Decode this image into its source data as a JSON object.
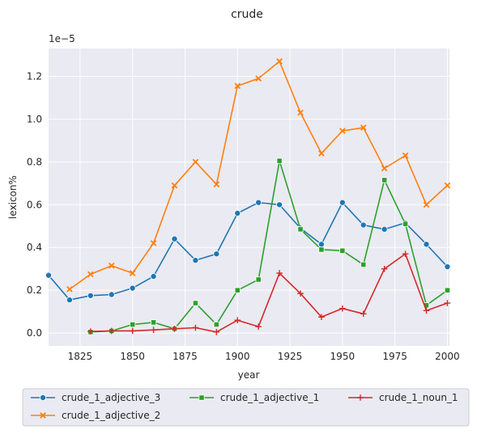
{
  "chart_data": {
    "type": "line",
    "title": "crude",
    "xlabel": "year",
    "ylabel": "lexicon%",
    "y_scale_label": "1e−5",
    "xlim": [
      1810,
      2001
    ],
    "ylim": [
      -0.06,
      1.33
    ],
    "x_ticks": [
      1825,
      1850,
      1875,
      1900,
      1925,
      1950,
      1975,
      2000
    ],
    "x_tick_labels": [
      "1825",
      "1850",
      "1875",
      "1900",
      "1925",
      "1950",
      "1975",
      "2000"
    ],
    "y_ticks": [
      0.0,
      0.2,
      0.4,
      0.6,
      0.8,
      1.0,
      1.2
    ],
    "y_tick_labels": [
      "0.0",
      "0.2",
      "0.4",
      "0.6",
      "0.8",
      "1.0",
      "1.2"
    ],
    "grid": true,
    "legend_position": "bottom",
    "series": [
      {
        "name": "crude_1_adjective_3",
        "color": "#1f77b4",
        "marker": "circle",
        "x": [
          1810,
          1820,
          1830,
          1840,
          1850,
          1860,
          1870,
          1880,
          1890,
          1900,
          1910,
          1920,
          1930,
          1940,
          1950,
          1960,
          1970,
          1980,
          1990,
          2000
        ],
        "y": [
          0.27,
          0.155,
          0.175,
          0.18,
          0.21,
          0.265,
          0.44,
          0.34,
          0.37,
          0.56,
          0.61,
          0.6,
          0.49,
          0.415,
          0.61,
          0.505,
          0.485,
          0.515,
          0.415,
          0.31
        ]
      },
      {
        "name": "crude_1_adjective_2",
        "color": "#ff7f0e",
        "marker": "x",
        "x": [
          1820,
          1830,
          1840,
          1850,
          1860,
          1870,
          1880,
          1890,
          1900,
          1910,
          1920,
          1930,
          1940,
          1950,
          1960,
          1970,
          1980,
          1990,
          2000
        ],
        "y": [
          0.205,
          0.275,
          0.315,
          0.28,
          0.42,
          0.69,
          0.8,
          0.695,
          1.155,
          1.19,
          1.27,
          1.03,
          0.84,
          0.945,
          0.96,
          0.77,
          0.83,
          0.6,
          0.69
        ]
      },
      {
        "name": "crude_1_adjective_1",
        "color": "#2ca02c",
        "marker": "square",
        "x": [
          1830,
          1840,
          1850,
          1860,
          1870,
          1880,
          1890,
          1900,
          1910,
          1920,
          1930,
          1940,
          1950,
          1960,
          1970,
          1980,
          1990,
          2000
        ],
        "y": [
          0.005,
          0.01,
          0.04,
          0.05,
          0.02,
          0.14,
          0.04,
          0.2,
          0.25,
          0.805,
          0.485,
          0.39,
          0.385,
          0.32,
          0.715,
          0.51,
          0.13,
          0.2
        ]
      },
      {
        "name": "crude_1_noun_1",
        "color": "#d62728",
        "marker": "plus",
        "x": [
          1830,
          1840,
          1850,
          1860,
          1870,
          1880,
          1890,
          1900,
          1910,
          1920,
          1930,
          1940,
          1950,
          1960,
          1970,
          1980,
          1990,
          2000
        ],
        "y": [
          0.008,
          0.01,
          0.01,
          0.015,
          0.02,
          0.025,
          0.005,
          0.06,
          0.03,
          0.28,
          0.185,
          0.075,
          0.115,
          0.09,
          0.3,
          0.37,
          0.105,
          0.14
        ]
      }
    ]
  }
}
